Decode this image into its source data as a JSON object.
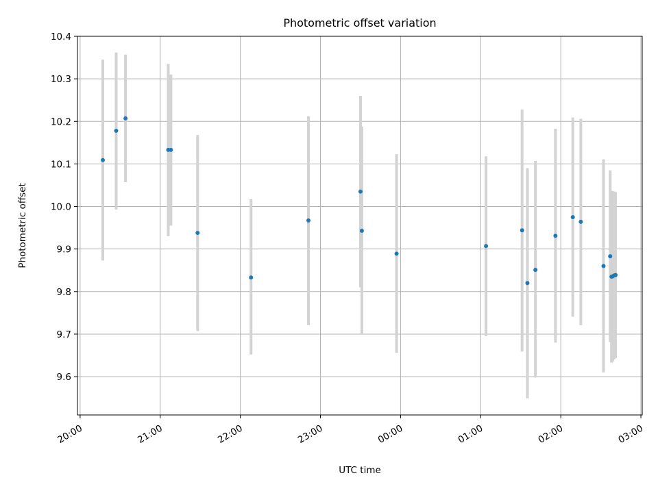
{
  "chart_data": {
    "type": "scatter",
    "title": "Photometric offset variation",
    "xlabel": "UTC time",
    "ylabel": "Photometric offset",
    "x_ticks": [
      "20:00",
      "21:00",
      "22:00",
      "23:00",
      "00:00",
      "01:00",
      "02:00",
      "03:00"
    ],
    "y_ticks": [
      "9.6",
      "9.7",
      "9.8",
      "9.9",
      "10.0",
      "10.1",
      "10.2",
      "10.3",
      "10.4"
    ],
    "xlim": [
      "19:58",
      "03:01"
    ],
    "ylim": [
      9.51,
      10.4
    ],
    "grid": true,
    "colors": {
      "points": "#1f77b4",
      "errorbars": "#d3d3d3",
      "grid": "#b0b0b0"
    },
    "series": [
      {
        "points": [
          {
            "x": "20:17",
            "y": 10.109,
            "ylow": 9.873,
            "yhigh": 10.345
          },
          {
            "x": "20:27",
            "y": 10.178,
            "ylow": 9.993,
            "yhigh": 10.362
          },
          {
            "x": "20:34",
            "y": 10.207,
            "ylow": 10.057,
            "yhigh": 10.357
          },
          {
            "x": "21:06",
            "y": 10.133,
            "ylow": 9.93,
            "yhigh": 10.335
          },
          {
            "x": "21:08",
            "y": 10.133,
            "ylow": 9.955,
            "yhigh": 10.31
          },
          {
            "x": "21:28",
            "y": 9.938,
            "ylow": 9.707,
            "yhigh": 10.168
          },
          {
            "x": "22:08",
            "y": 9.833,
            "ylow": 9.652,
            "yhigh": 10.017
          },
          {
            "x": "22:51",
            "y": 9.967,
            "ylow": 9.721,
            "yhigh": 10.212
          },
          {
            "x": "23:30",
            "y": 10.035,
            "ylow": 9.81,
            "yhigh": 10.26
          },
          {
            "x": "23:31",
            "y": 9.943,
            "ylow": 9.7,
            "yhigh": 10.188
          },
          {
            "x": "23:57",
            "y": 9.889,
            "ylow": 9.656,
            "yhigh": 10.123
          },
          {
            "x": "01:04",
            "y": 9.907,
            "ylow": 9.695,
            "yhigh": 10.118
          },
          {
            "x": "01:31",
            "y": 9.944,
            "ylow": 9.659,
            "yhigh": 10.228
          },
          {
            "x": "01:35",
            "y": 9.82,
            "ylow": 9.549,
            "yhigh": 10.09
          },
          {
            "x": "01:41",
            "y": 9.851,
            "ylow": 9.598,
            "yhigh": 10.107
          },
          {
            "x": "01:56",
            "y": 9.931,
            "ylow": 9.68,
            "yhigh": 10.183
          },
          {
            "x": "02:09",
            "y": 9.975,
            "ylow": 9.741,
            "yhigh": 10.209
          },
          {
            "x": "02:15",
            "y": 9.964,
            "ylow": 9.721,
            "yhigh": 10.206
          },
          {
            "x": "02:32",
            "y": 9.86,
            "ylow": 9.61,
            "yhigh": 10.111
          },
          {
            "x": "02:37",
            "y": 9.883,
            "ylow": 9.681,
            "yhigh": 10.085
          },
          {
            "x": "02:38",
            "y": 9.835,
            "ylow": 9.633,
            "yhigh": 10.037
          },
          {
            "x": "02:39",
            "y": 9.836,
            "ylow": 9.636,
            "yhigh": 10.036
          },
          {
            "x": "02:40",
            "y": 9.838,
            "ylow": 9.641,
            "yhigh": 10.035
          },
          {
            "x": "02:41",
            "y": 9.839,
            "ylow": 9.644,
            "yhigh": 10.034
          }
        ]
      }
    ]
  }
}
